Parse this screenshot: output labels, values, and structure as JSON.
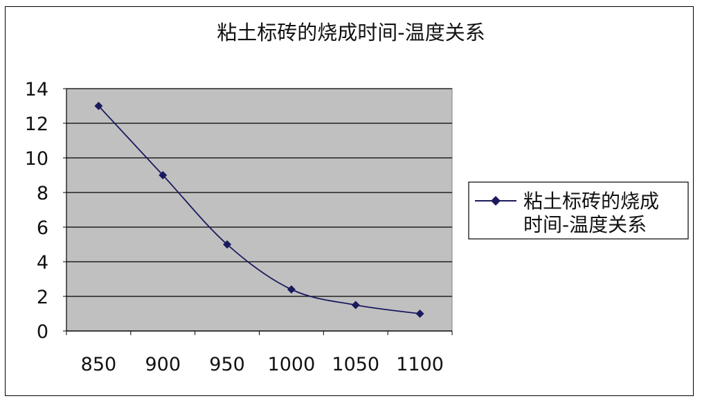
{
  "chart_data": {
    "type": "line",
    "title": "粘土标砖的烧成时间-温度关系",
    "xlabel": "",
    "ylabel": "",
    "categories": [
      "850",
      "900",
      "950",
      "1000",
      "1050",
      "1100"
    ],
    "series": [
      {
        "name": "粘土标砖的烧成时间-温度关系",
        "values": [
          13,
          9,
          5,
          2.4,
          1.5,
          1.0
        ]
      }
    ],
    "ylim": [
      0,
      14
    ],
    "yticks": [
      "0",
      "2",
      "4",
      "6",
      "8",
      "10",
      "12",
      "14"
    ],
    "legend_lines": [
      "粘土标砖的烧成",
      "时间-温度关系"
    ],
    "grid": true,
    "legend": "right",
    "colors": {
      "series": "#1a1a5e",
      "plot_bg": "#c0c0c0",
      "grid": "#000000"
    }
  }
}
